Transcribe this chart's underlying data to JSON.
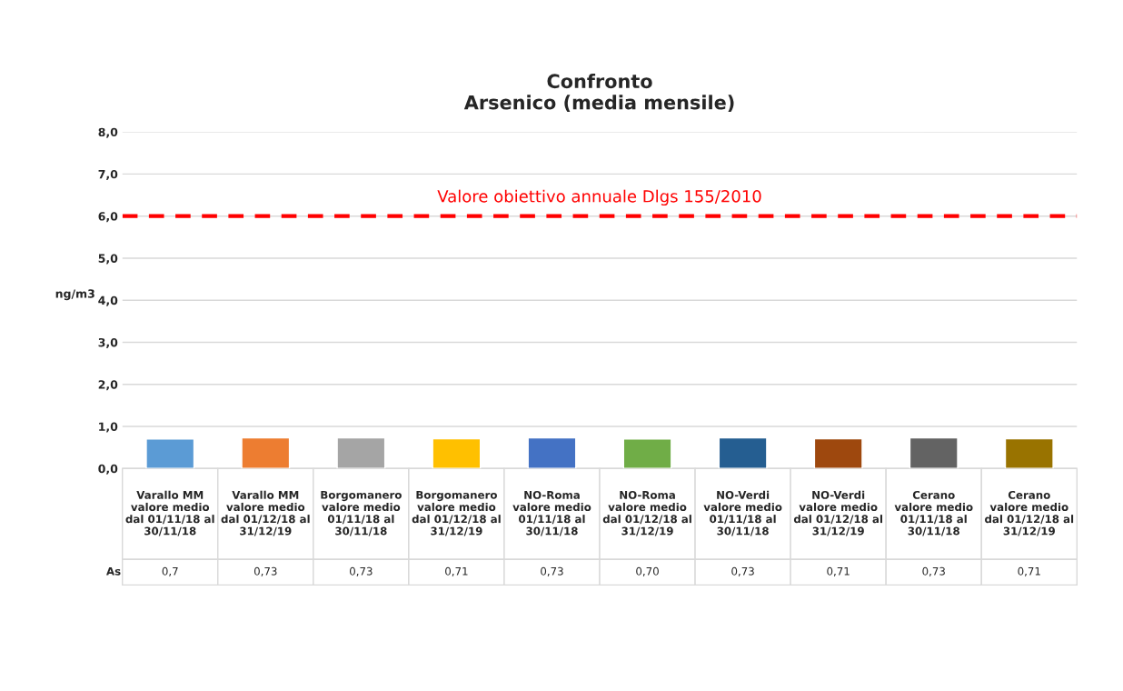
{
  "chart_data": {
    "type": "bar",
    "title": "Confronto\nArsenico (media mensile)",
    "ylabel": "ng/m3",
    "categories": [
      "Varallo MM\nvalore medio\ndal 01/11/18 al\n30/11/18",
      "Varallo MM\nvalore medio\ndal 01/12/18 al\n31/12/19",
      "Borgomanero\nvalore medio\n01/11/18 al\n30/11/18",
      "Borgomanero\nvalore medio\ndal 01/12/18 al\n31/12/19",
      "NO-Roma\nvalore medio\n01/11/18 al\n30/11/18",
      "NO-Roma\nvalore medio\ndal 01/12/18 al\n31/12/19",
      "NO-Verdi\nvalore medio\n01/11/18 al\n30/11/18",
      "NO-Verdi\nvalore medio\ndal 01/12/18 al\n31/12/19",
      "Cerano\nvalore medio\n01/11/18 al\n30/11/18",
      "Cerano\nvalore medio\ndal 01/12/18 al\n31/12/19"
    ],
    "annotations": [
      "As"
    ],
    "series": [
      {
        "values": [
          0.7,
          0.73,
          0.73,
          0.71,
          0.73,
          0.7,
          0.73,
          0.71,
          0.73,
          0.71
        ],
        "value_labels": [
          "0,7",
          "0,73",
          "0,73",
          "0,71",
          "0,73",
          "0,70",
          "0,73",
          "0,71",
          "0,73",
          "0,71"
        ],
        "colors": [
          "#5b9bd5",
          "#ed7d31",
          "#a5a5a5",
          "#ffc000",
          "#4472c4",
          "#70ad47",
          "#255e91",
          "#9e480e",
          "#636363",
          "#997300"
        ]
      }
    ],
    "ylim": [
      0,
      8
    ],
    "yticks": [
      {
        "value": 0,
        "label": "0,0"
      },
      {
        "value": 1,
        "label": "1,0"
      },
      {
        "value": 2,
        "label": "2,0"
      },
      {
        "value": 3,
        "label": "3,0"
      },
      {
        "value": 4,
        "label": "4,0"
      },
      {
        "value": 5,
        "label": "5,0"
      },
      {
        "value": 6,
        "label": "6,0"
      },
      {
        "value": 7,
        "label": "7,0"
      },
      {
        "value": 8,
        "label": "8,0"
      }
    ],
    "ref_lines": [
      {
        "axis": "y",
        "value": 6,
        "label": "Valore obiettivo annuale Dlgs 155/2010",
        "color": "#ff0000",
        "line_style": "dashed"
      }
    ],
    "grid": "y",
    "legend": false
  }
}
